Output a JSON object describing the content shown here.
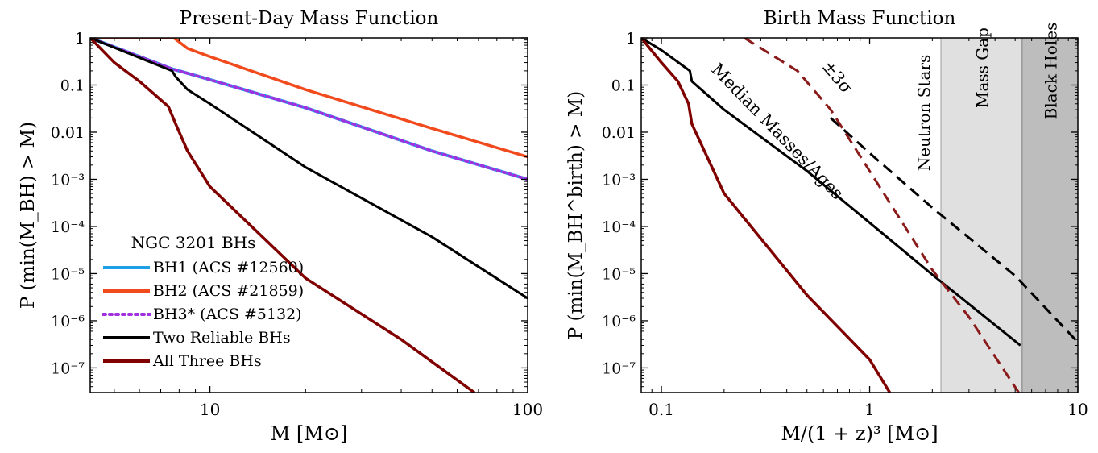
{
  "chart_data": [
    {
      "type": "line",
      "title": "Present-Day Mass Function",
      "xlabel": "M [M⊙]",
      "ylabel": "P (min(M_BH) > M)",
      "xscale": "log",
      "yscale": "log",
      "xlim": [
        4.2,
        100
      ],
      "ylim": [
        3e-08,
        1
      ],
      "x_ticks": [
        {
          "v": 10,
          "label": "10"
        },
        {
          "v": 100,
          "label": "100"
        }
      ],
      "y_ticks": [
        {
          "v": 1,
          "label": "1"
        },
        {
          "v": 0.1,
          "label": "0.1"
        },
        {
          "v": 0.01,
          "label": "0.01"
        },
        {
          "v": 0.001,
          "label": "10⁻³"
        },
        {
          "v": 0.0001,
          "label": "10⁻⁴"
        },
        {
          "v": 1e-05,
          "label": "10⁻⁵"
        },
        {
          "v": 1e-06,
          "label": "10⁻⁶"
        },
        {
          "v": 1e-07,
          "label": "10⁻⁷"
        }
      ],
      "legend": {
        "title": "NGC 3201 BHs",
        "placement": "lower-left",
        "entries": [
          {
            "label": "BH1 (ACS #12560)",
            "color": "#1f9fe6",
            "style": "solid"
          },
          {
            "label": "BH2 (ACS #21859)",
            "color": "#f04a1d",
            "style": "solid"
          },
          {
            "label": "BH3* (ACS #5132)",
            "color": "#a030e0",
            "style": "dotted"
          },
          {
            "label": "Two Reliable BHs",
            "color": "#000000",
            "style": "solid"
          },
          {
            "label": "All Three BHs",
            "color": "#800000",
            "style": "solid"
          }
        ]
      },
      "series": [
        {
          "name": "BH1 (ACS #12560)",
          "color": "#1f9fe6",
          "style": "solid",
          "width": 4,
          "points": [
            [
              4.2,
              1
            ],
            [
              7.6,
              0.22
            ],
            [
              10,
              0.13
            ],
            [
              20,
              0.033
            ],
            [
              50,
              0.004
            ],
            [
              100,
              0.001
            ]
          ]
        },
        {
          "name": "BH2 (ACS #21859)",
          "color": "#f04a1d",
          "style": "solid",
          "width": 3.5,
          "points": [
            [
              4.2,
              1
            ],
            [
              7.7,
              1
            ],
            [
              8.5,
              0.6
            ],
            [
              10,
              0.4
            ],
            [
              20,
              0.08
            ],
            [
              50,
              0.012
            ],
            [
              100,
              0.003
            ]
          ]
        },
        {
          "name": "BH3* (ACS #5132)",
          "color": "#a030e0",
          "style": "dotted",
          "width": 3.5,
          "points": [
            [
              4.2,
              1
            ],
            [
              7.6,
              0.22
            ],
            [
              10,
              0.13
            ],
            [
              20,
              0.033
            ],
            [
              50,
              0.004
            ],
            [
              100,
              0.001
            ]
          ]
        },
        {
          "name": "Two Reliable BHs",
          "color": "#000000",
          "style": "solid",
          "width": 3,
          "points": [
            [
              4.2,
              1
            ],
            [
              7.6,
              0.2
            ],
            [
              7.8,
              0.15
            ],
            [
              8.5,
              0.08
            ],
            [
              10,
              0.04
            ],
            [
              20,
              0.0018
            ],
            [
              50,
              6e-05
            ],
            [
              100,
              3e-06
            ]
          ]
        },
        {
          "name": "All Three BHs",
          "color": "#800000",
          "style": "solid",
          "width": 3.5,
          "points": [
            [
              4.2,
              1
            ],
            [
              5,
              0.3
            ],
            [
              6,
              0.12
            ],
            [
              7.4,
              0.035
            ],
            [
              7.8,
              0.015
            ],
            [
              8.5,
              0.004
            ],
            [
              10,
              0.0007
            ],
            [
              20,
              8e-06
            ],
            [
              40,
              4e-07
            ],
            [
              68,
              3e-08
            ]
          ]
        }
      ]
    },
    {
      "type": "line",
      "title": "Birth Mass Function",
      "xlabel": "M/(1 + z)³ [M⊙]",
      "ylabel": "P (min(M_BH^birth) > M)",
      "xscale": "log",
      "yscale": "log",
      "xlim": [
        0.08,
        10
      ],
      "ylim": [
        3e-08,
        1
      ],
      "x_ticks": [
        {
          "v": 0.1,
          "label": "0.1"
        },
        {
          "v": 1,
          "label": "1"
        },
        {
          "v": 10,
          "label": "10"
        }
      ],
      "y_ticks": [
        {
          "v": 1,
          "label": "1"
        },
        {
          "v": 0.1,
          "label": "0.1"
        },
        {
          "v": 0.01,
          "label": "0.01"
        },
        {
          "v": 0.001,
          "label": "10⁻³"
        },
        {
          "v": 0.0001,
          "label": "10⁻⁴"
        },
        {
          "v": 1e-05,
          "label": "10⁻⁵"
        },
        {
          "v": 1e-06,
          "label": "10⁻⁶"
        },
        {
          "v": 1e-07,
          "label": "10⁻⁷"
        }
      ],
      "regions": [
        {
          "label": "Neutron Stars",
          "x0": null,
          "x1": null,
          "color": null
        },
        {
          "label": "Mass Gap",
          "x0": 2.2,
          "x1": 5.4,
          "color": "#e0e0e0"
        },
        {
          "label": "Black Holes",
          "x0": 5.4,
          "x1": 10,
          "color": "#bdbdbd"
        }
      ],
      "annotations": [
        {
          "text": "Median Masses/Ages"
        },
        {
          "text": "±3σ"
        }
      ],
      "series": [
        {
          "color": "#000000",
          "style": "solid",
          "width": 3,
          "points": [
            [
              0.08,
              1
            ],
            [
              0.1,
              0.55
            ],
            [
              0.137,
              0.2
            ],
            [
              0.14,
              0.12
            ],
            [
              0.2,
              0.03
            ],
            [
              0.5,
              0.0015
            ],
            [
              1,
              0.00012
            ],
            [
              2,
              9.5e-06
            ],
            [
              5.3,
              3e-07
            ]
          ]
        },
        {
          "color": "#800000",
          "style": "solid",
          "width": 3.5,
          "points": [
            [
              0.08,
              1
            ],
            [
              0.1,
              0.3
            ],
            [
              0.12,
              0.12
            ],
            [
              0.135,
              0.04
            ],
            [
              0.14,
              0.015
            ],
            [
              0.2,
              0.0005
            ],
            [
              0.5,
              3.5e-06
            ],
            [
              1,
              1.5e-07
            ],
            [
              1.25,
              3e-08
            ]
          ]
        },
        {
          "color": "#000000",
          "style": "dashed",
          "width": 3,
          "points": [
            [
              0.65,
              0.02
            ],
            [
              1,
              0.0036
            ],
            [
              2,
              0.00025
            ],
            [
              5,
              9e-06
            ],
            [
              10,
              3.5e-07
            ]
          ]
        },
        {
          "color": "#8b1a1a",
          "style": "dashed",
          "width": 3,
          "points": [
            [
              0.25,
              1
            ],
            [
              0.45,
              0.2
            ],
            [
              0.65,
              0.03
            ],
            [
              1,
              0.0015
            ],
            [
              2,
              1.2e-05
            ],
            [
              3,
              1.2e-06
            ],
            [
              5.2,
              3e-08
            ]
          ]
        }
      ]
    }
  ]
}
